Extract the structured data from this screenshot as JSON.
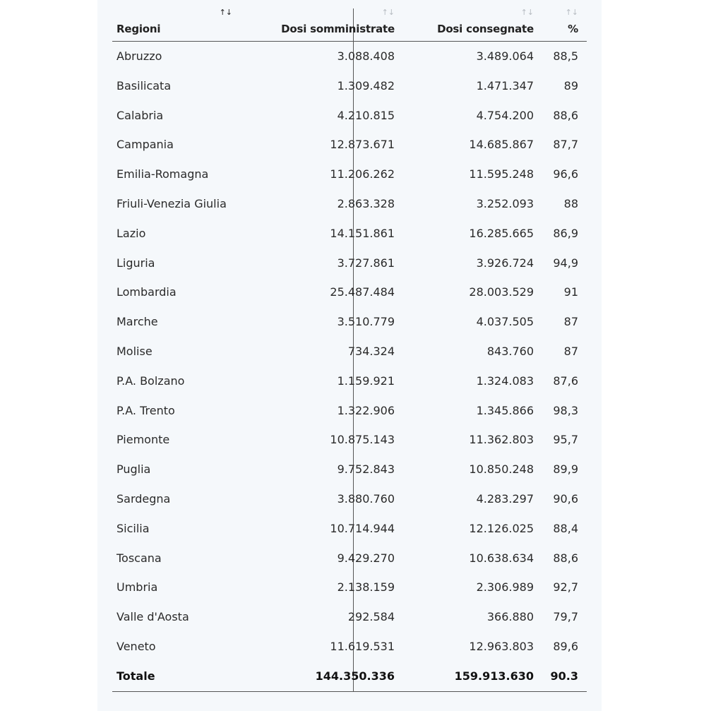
{
  "table": {
    "headers": {
      "region": "Regioni",
      "administered": "Dosi somministrate",
      "delivered": "Dosi consegnate",
      "percent": "%"
    },
    "sort_icon": "↑↓",
    "rows": [
      {
        "region": "Abruzzo",
        "administered": "3.088.408",
        "delivered": "3.489.064",
        "percent": "88,5"
      },
      {
        "region": "Basilicata",
        "administered": "1.309.482",
        "delivered": "1.471.347",
        "percent": "89"
      },
      {
        "region": "Calabria",
        "administered": "4.210.815",
        "delivered": "4.754.200",
        "percent": "88,6"
      },
      {
        "region": "Campania",
        "administered": "12.873.671",
        "delivered": "14.685.867",
        "percent": "87,7"
      },
      {
        "region": "Emilia-Romagna",
        "administered": "11.206.262",
        "delivered": "11.595.248",
        "percent": "96,6"
      },
      {
        "region": "Friuli-Venezia Giulia",
        "administered": "2.863.328",
        "delivered": "3.252.093",
        "percent": "88"
      },
      {
        "region": "Lazio",
        "administered": "14.151.861",
        "delivered": "16.285.665",
        "percent": "86,9"
      },
      {
        "region": "Liguria",
        "administered": "3.727.861",
        "delivered": "3.926.724",
        "percent": "94,9"
      },
      {
        "region": "Lombardia",
        "administered": "25.487.484",
        "delivered": "28.003.529",
        "percent": "91"
      },
      {
        "region": "Marche",
        "administered": "3.510.779",
        "delivered": "4.037.505",
        "percent": "87"
      },
      {
        "region": "Molise",
        "administered": "734.324",
        "delivered": "843.760",
        "percent": "87"
      },
      {
        "region": "P.A. Bolzano",
        "administered": "1.159.921",
        "delivered": "1.324.083",
        "percent": "87,6"
      },
      {
        "region": "P.A. Trento",
        "administered": "1.322.906",
        "delivered": "1.345.866",
        "percent": "98,3"
      },
      {
        "region": "Piemonte",
        "administered": "10.875.143",
        "delivered": "11.362.803",
        "percent": "95,7"
      },
      {
        "region": "Puglia",
        "administered": "9.752.843",
        "delivered": "10.850.248",
        "percent": "89,9"
      },
      {
        "region": "Sardegna",
        "administered": "3.880.760",
        "delivered": "4.283.297",
        "percent": "90,6"
      },
      {
        "region": "Sicilia",
        "administered": "10.714.944",
        "delivered": "12.126.025",
        "percent": "88,4"
      },
      {
        "region": "Toscana",
        "administered": "9.429.270",
        "delivered": "10.638.634",
        "percent": "88,6"
      },
      {
        "region": "Umbria",
        "administered": "2.138.159",
        "delivered": "2.306.989",
        "percent": "92,7"
      },
      {
        "region": "Valle d'Aosta",
        "administered": "292.584",
        "delivered": "366.880",
        "percent": "79,7"
      },
      {
        "region": "Veneto",
        "administered": "11.619.531",
        "delivered": "12.963.803",
        "percent": "89,6"
      }
    ],
    "total": {
      "region": "Totale",
      "administered": "144.350.336",
      "delivered": "159.913.630",
      "percent": "90.3"
    }
  }
}
